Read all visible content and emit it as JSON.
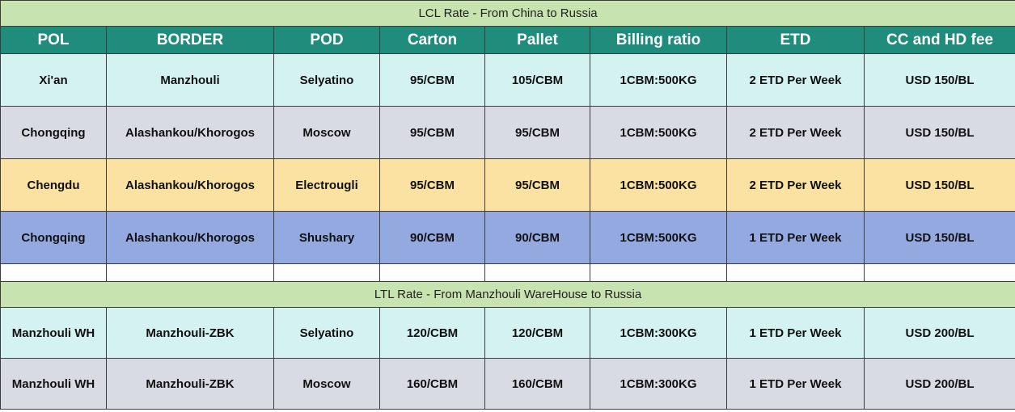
{
  "colors": {
    "title_bg": "#c7e3b0",
    "header_bg": "#1f8c7c",
    "row_cyan": "#d3f2f0",
    "row_gray": "#d9dbe3",
    "row_yellow": "#fbe2a3",
    "row_blue": "#93a9e0"
  },
  "lcl": {
    "title": "LCL Rate - From China to Russia",
    "headers": [
      "POL",
      "BORDER",
      "POD",
      "Carton",
      "Pallet",
      "Billing ratio",
      "ETD",
      "CC and HD fee"
    ],
    "rows": [
      [
        "Xi'an",
        "Manzhouli",
        "Selyatino",
        "95/CBM",
        "105/CBM",
        "1CBM:500KG",
        "2 ETD Per Week",
        "USD 150/BL"
      ],
      [
        "Chongqing",
        "Alashankou/Khorogos",
        "Moscow",
        "95/CBM",
        "95/CBM",
        "1CBM:500KG",
        "2 ETD Per Week",
        "USD 150/BL"
      ],
      [
        "Chengdu",
        "Alashankou/Khorogos",
        "Electrougli",
        "95/CBM",
        "95/CBM",
        "1CBM:500KG",
        "2 ETD Per Week",
        "USD 150/BL"
      ],
      [
        "Chongqing",
        "Alashankou/Khorogos",
        "Shushary",
        "90/CBM",
        "90/CBM",
        "1CBM:500KG",
        "1 ETD Per Week",
        "USD 150/BL"
      ]
    ]
  },
  "ltl": {
    "title": "LTL Rate - From Manzhouli WareHouse to Russia",
    "rows": [
      [
        "Manzhouli WH",
        "Manzhouli-ZBK",
        "Selyatino",
        "120/CBM",
        "120/CBM",
        "1CBM:300KG",
        "1 ETD Per Week",
        "USD 200/BL"
      ],
      [
        "Manzhouli WH",
        "Manzhouli-ZBK",
        "Moscow",
        "160/CBM",
        "160/CBM",
        "1CBM:300KG",
        "1 ETD Per Week",
        "USD 200/BL"
      ]
    ]
  }
}
